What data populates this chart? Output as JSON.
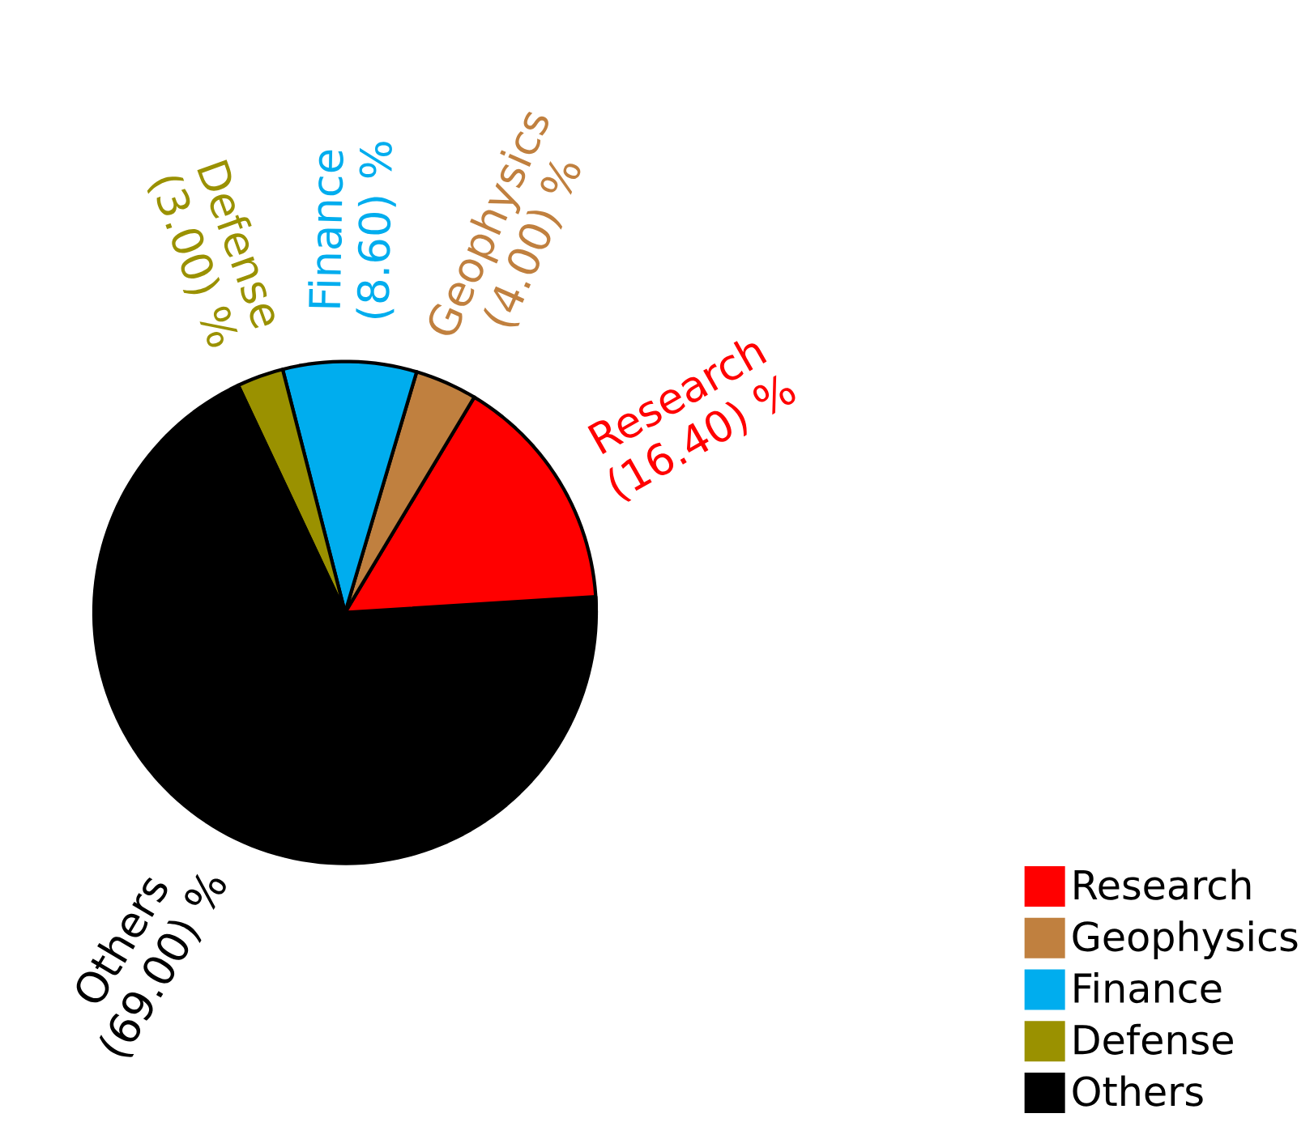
{
  "chart_data": {
    "type": "pie",
    "categories": [
      "Research",
      "Geophysics",
      "Finance",
      "Defense",
      "Others"
    ],
    "values": [
      16.4,
      4.0,
      8.6,
      3.0,
      69.0
    ],
    "value_labels": [
      "(16.40) %",
      "(4.00) %",
      "(8.60) %",
      "(3.00) %",
      "(69.00) %"
    ],
    "colors": [
      "#ff0000",
      "#c0803f",
      "#00adee",
      "#9a9100",
      "#000000"
    ],
    "legend": "bottom right"
  }
}
